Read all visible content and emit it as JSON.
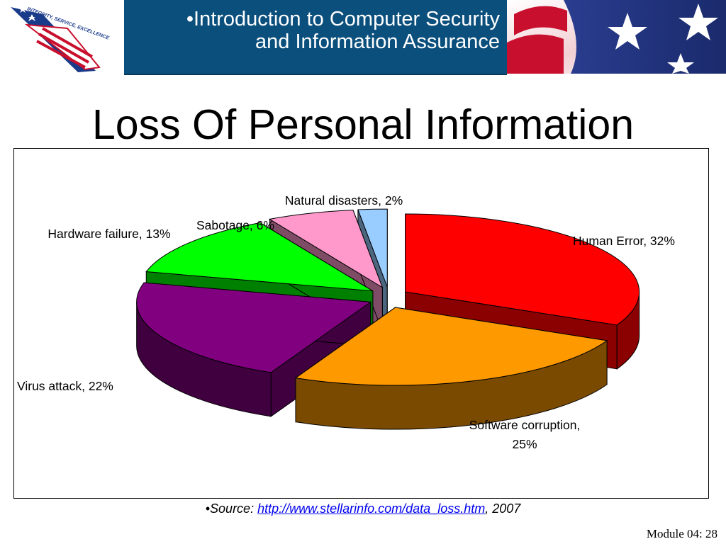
{
  "header": {
    "logo_text": "INTEGRITY, SERVICE, EXCELLENCE",
    "banner_line1": "•Introduction to Computer Security",
    "banner_line2": "and Information Assurance"
  },
  "slide": {
    "title": "Loss Of Personal Information"
  },
  "chart_data": {
    "type": "pie",
    "title": "",
    "slices": [
      {
        "label": "Human Error, 32%",
        "category": "Human Error",
        "value": 32,
        "color": "#ff0000",
        "side_color": "#8b0000"
      },
      {
        "label": "Software corruption, 25%",
        "category": "Software corruption",
        "value": 25,
        "color": "#ff9900",
        "side_color": "#7a4a00"
      },
      {
        "label": "Virus attack, 22%",
        "category": "Virus attack",
        "value": 22,
        "color": "#800080",
        "side_color": "#400040"
      },
      {
        "label": "Hardware failure, 13%",
        "category": "Hardware failure",
        "value": 13,
        "color": "#00ff00",
        "side_color": "#008000"
      },
      {
        "label": "Sabotage, 6%",
        "category": "Sabotage",
        "value": 6,
        "color": "#ff99cc",
        "side_color": "#7f4c66"
      },
      {
        "label": "Natural disasters, 2%",
        "category": "Natural disasters",
        "value": 2,
        "color": "#99ccff",
        "side_color": "#4d6680"
      }
    ],
    "exploded": true,
    "three_d": true,
    "legend": "none"
  },
  "footer": {
    "source_prefix": "•Source: ",
    "source_link": "http://www.stellarinfo.com/data_loss.htm",
    "source_suffix": ", 2007",
    "module": "Module 04: 28"
  }
}
